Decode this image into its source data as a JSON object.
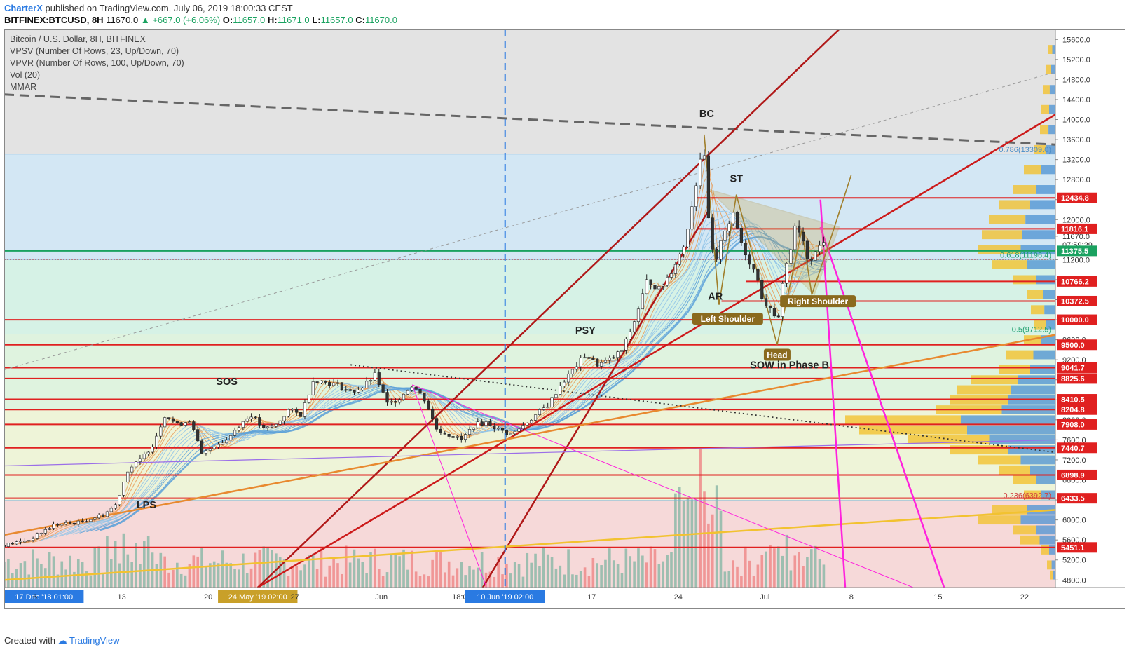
{
  "header": {
    "author": "CharterX",
    "published_text": "published on TradingView.com, July 06, 2019 18:00:33 CEST",
    "symbol": "BITFINEX:BTCUSD, 8H",
    "last": "11670.0",
    "change": "▲ +667.0 (+6.06%)",
    "o_label": "O:",
    "o_value": "11657.0",
    "h_label": "H:",
    "h_value": "11671.0",
    "l_label": "L:",
    "l_value": "11657.0",
    "c_label": "C:",
    "c_value": "11670.0"
  },
  "legend": [
    "Bitcoin / U.S. Dollar, 8H, BITFINEX",
    "VPSV (Number Of Rows, 23, Up/Down, 70)",
    "VPVR (Number Of Rows, 100, Up/Down, 70)",
    "Vol (20)",
    "MMAR"
  ],
  "footer": {
    "created_with": "Created with",
    "brand": "TradingView"
  },
  "colors": {
    "up": "#1aa260",
    "down": "#d63b3b",
    "accent": "#2a7ae2",
    "support_line": "#e02020",
    "trend_dark": "#b01818",
    "magenta": "#ff22dd",
    "orange": "#e8892f",
    "yellow": "#f2c230",
    "purple": "#9b6ee8"
  },
  "chart_data": {
    "type": "candlestick",
    "ylim": [
      4650,
      15800
    ],
    "y_ticks": [
      4800,
      5200,
      5600,
      6000,
      6400,
      6800,
      7200,
      7600,
      8000,
      8400,
      8800,
      9200,
      9600,
      10000,
      10400,
      10800,
      11200,
      11670,
      12000,
      12400,
      12800,
      13200,
      13600,
      14000,
      14400,
      14800,
      15200,
      15600
    ],
    "y_tick_labels": [
      "4800.0",
      "5200.0",
      "5600.0",
      "6000.0",
      "6400.0",
      "6800.0",
      "7200.0",
      "7600.0",
      "8000.0",
      "8400.0",
      "8800.0",
      "9200.0",
      "9600.0",
      "10000.0",
      "10400.0",
      "10800.0",
      "11200.0",
      "11670.0",
      "12000.0",
      "12400.0",
      "12800.0",
      "13200.0",
      "13600.0",
      "14000.0",
      "14400.0",
      "14800.0",
      "15200.0",
      "15600.0"
    ],
    "countdown": "07:59:29",
    "x_labels": [
      {
        "day": 0,
        "text": "17 Dec '18  01:00",
        "highlight": "blue"
      },
      {
        "day": 2.5,
        "text": "6"
      },
      {
        "day": 9.5,
        "text": "13"
      },
      {
        "day": 16.5,
        "text": "20"
      },
      {
        "day": 20.5,
        "text": "24 May '19  02:00",
        "highlight": "gold"
      },
      {
        "day": 23.5,
        "text": "27"
      },
      {
        "day": 30.5,
        "text": "Jun"
      },
      {
        "day": 37,
        "text": "18:00"
      },
      {
        "day": 40.5,
        "text": "10 Jun '19  02:00",
        "highlight": "blue"
      },
      {
        "day": 47.5,
        "text": "17"
      },
      {
        "day": 54.5,
        "text": "24"
      },
      {
        "day": 61.5,
        "text": "Jul"
      },
      {
        "day": 68.5,
        "text": "8"
      },
      {
        "day": 75.5,
        "text": "15"
      },
      {
        "day": 82.5,
        "text": "22"
      }
    ],
    "price_path": [
      [
        0,
        5500
      ],
      [
        2,
        5600
      ],
      [
        4,
        5900
      ],
      [
        6,
        5950
      ],
      [
        8,
        6100
      ],
      [
        9,
        6300
      ],
      [
        10,
        7000
      ],
      [
        11,
        7200
      ],
      [
        12,
        7500
      ],
      [
        13,
        8100
      ],
      [
        14,
        7900
      ],
      [
        15,
        8000
      ],
      [
        16,
        7300
      ],
      [
        17,
        7500
      ],
      [
        18,
        7600
      ],
      [
        19,
        7900
      ],
      [
        20,
        8100
      ],
      [
        21,
        7800
      ],
      [
        22,
        7900
      ],
      [
        23,
        8200
      ],
      [
        24,
        8100
      ],
      [
        25,
        8800
      ],
      [
        26,
        8750
      ],
      [
        27,
        8700
      ],
      [
        28,
        8550
      ],
      [
        29,
        8650
      ],
      [
        30,
        8900
      ],
      [
        31,
        8300
      ],
      [
        32,
        8450
      ],
      [
        33,
        8700
      ],
      [
        34,
        8400
      ],
      [
        35,
        7800
      ],
      [
        36,
        7700
      ],
      [
        37,
        7600
      ],
      [
        38,
        7900
      ],
      [
        39,
        7950
      ],
      [
        40,
        7800
      ],
      [
        41,
        7700
      ],
      [
        42,
        7900
      ],
      [
        43,
        8100
      ],
      [
        44,
        8300
      ],
      [
        45,
        8700
      ],
      [
        46,
        9000
      ],
      [
        47,
        9300
      ],
      [
        48,
        9100
      ],
      [
        49,
        9200
      ],
      [
        50,
        9400
      ],
      [
        51,
        10000
      ],
      [
        52,
        10800
      ],
      [
        53,
        10600
      ],
      [
        54,
        11000
      ],
      [
        55,
        11500
      ],
      [
        56,
        12800
      ],
      [
        56.5,
        13600
      ],
      [
        57,
        11800
      ],
      [
        57.5,
        11000
      ],
      [
        58,
        11700
      ],
      [
        59,
        12100
      ],
      [
        59.5,
        11600
      ],
      [
        60,
        11300
      ],
      [
        61,
        10800
      ],
      [
        61.5,
        10200
      ],
      [
        62,
        10300
      ],
      [
        62.5,
        9800
      ],
      [
        63,
        10900
      ],
      [
        63.5,
        11300
      ],
      [
        64,
        11900
      ],
      [
        64.5,
        11600
      ],
      [
        65,
        11200
      ],
      [
        65.5,
        11300
      ],
      [
        66,
        11500
      ],
      [
        66.5,
        11670
      ]
    ],
    "horizontal_levels": [
      {
        "price": 12434.8,
        "label": "12434.8",
        "from_day": 56
      },
      {
        "price": 11816.1,
        "label": "11816.1",
        "from_day": 56
      },
      {
        "price": 11375.5,
        "label": "11375.5",
        "from_day": 0,
        "color": "#1aa260"
      },
      {
        "price": 10766.2,
        "label": "10766.2",
        "from_day": 60
      },
      {
        "price": 10372.5,
        "label": "10372.5",
        "from_day": 58
      },
      {
        "price": 10000.0,
        "label": "10000.0",
        "from_day": 0
      },
      {
        "price": 9500.0,
        "label": "9500.0",
        "from_day": 0
      },
      {
        "price": 9041.7,
        "label": "9041.7",
        "from_day": 0
      },
      {
        "price": 8825.6,
        "label": "8825.6",
        "from_day": 0
      },
      {
        "price": 8410.5,
        "label": "8410.5",
        "from_day": 0
      },
      {
        "price": 8204.8,
        "label": "8204.8",
        "from_day": 0
      },
      {
        "price": 7908.0,
        "label": "7908.0",
        "from_day": 0
      },
      {
        "price": 7440.7,
        "label": "7440.7",
        "from_day": 0
      },
      {
        "price": 6898.9,
        "label": "6898.9",
        "from_day": 0
      },
      {
        "price": 6433.5,
        "label": "6433.5",
        "from_day": 0
      },
      {
        "price": 5451.1,
        "label": "5451.1",
        "from_day": 0
      }
    ],
    "fib_levels": [
      {
        "price": 13309.0,
        "label": "0.786(13309.0)"
      },
      {
        "price": 11196.4,
        "label": "0.618(11196.4)"
      },
      {
        "price": 9712.5,
        "label": "0.5(9712.5)"
      },
      {
        "price": 6392.7,
        "label": "0.236(6392.7)"
      }
    ],
    "zones": [
      {
        "from": 13309.0,
        "to": 15800,
        "color": "#e3e3e3"
      },
      {
        "from": 11196.4,
        "to": 13309.0,
        "color": "#d3e7f4"
      },
      {
        "from": 9712.5,
        "to": 11196.4,
        "color": "#d6f2e6"
      },
      {
        "from": 8200,
        "to": 9712.5,
        "color": "#dff3df"
      },
      {
        "from": 6392.7,
        "to": 8200,
        "color": "#eef4d8"
      },
      {
        "from": 4650,
        "to": 6392.7,
        "color": "#f6d9d9"
      }
    ],
    "trendlines": [
      {
        "name": "dashed-resistance",
        "from": [
          0,
          14500
        ],
        "to": [
          85,
          13500
        ],
        "color": "#666666",
        "style": "dashed",
        "width": 3
      },
      {
        "name": "thin-dashed-channel",
        "from": [
          0,
          9000
        ],
        "to": [
          85,
          14950
        ],
        "color": "#999999",
        "style": "dashed",
        "width": 1
      },
      {
        "name": "steep-red-trend-1",
        "from": [
          20.5,
          4650
        ],
        "to": [
          67.5,
          15800
        ],
        "color": "#b01818",
        "width": 2.5
      },
      {
        "name": "steep-red-trend-2",
        "from": [
          38.7,
          4650
        ],
        "to": [
          57,
          12200
        ],
        "color": "#b01818",
        "width": 2.5
      },
      {
        "name": "rising-red-trend",
        "from": [
          20.5,
          4650
        ],
        "to": [
          85,
          14100
        ],
        "color": "#cc1a1a",
        "width": 2.5
      },
      {
        "name": "orange-trend",
        "from": [
          0,
          5700
        ],
        "to": [
          85,
          9700
        ],
        "color": "#e8892f",
        "width": 2.5
      },
      {
        "name": "yellow-trend",
        "from": [
          0,
          4800
        ],
        "to": [
          85,
          6200
        ],
        "color": "#f2c230",
        "width": 2.5
      },
      {
        "name": "purple-trend",
        "from": [
          0,
          7080
        ],
        "to": [
          85,
          7600
        ],
        "color": "#9b6ee8",
        "width": 1.2
      },
      {
        "name": "dotted-downtrend",
        "from": [
          28,
          9100
        ],
        "to": [
          85,
          7350
        ],
        "color": "#333333",
        "style": "dotted",
        "width": 1.8
      },
      {
        "name": "magenta-fan-1",
        "from": [
          66,
          12400
        ],
        "to": [
          68,
          4650
        ],
        "color": "#ff22dd",
        "width": 2.5
      },
      {
        "name": "magenta-fan-2",
        "from": [
          66,
          11850
        ],
        "to": [
          76,
          4650
        ],
        "color": "#ff22dd",
        "width": 2.5
      },
      {
        "name": "magenta-thin-1",
        "from": [
          33,
          8700
        ],
        "to": [
          39,
          4650
        ],
        "color": "#ff22dd",
        "width": 1
      },
      {
        "name": "magenta-thin-2",
        "from": [
          33,
          8700
        ],
        "to": [
          73.5,
          4650
        ],
        "color": "#ff22dd",
        "width": 1
      }
    ],
    "triangle": {
      "points": [
        [
          57,
          12600
        ],
        [
          67.5,
          11850
        ],
        [
          65.5,
          10500
        ]
      ],
      "color": "#b08a2a"
    },
    "annotations": [
      {
        "text": "SOS",
        "day": 18,
        "price": 8700
      },
      {
        "text": "LPS",
        "day": 11.5,
        "price": 6230
      },
      {
        "text": "PSY",
        "day": 47,
        "price": 9720
      },
      {
        "text": "BC",
        "day": 56.8,
        "price": 14050
      },
      {
        "text": "ST",
        "day": 59.2,
        "price": 12750
      },
      {
        "text": "AR",
        "day": 57.5,
        "price": 10400
      },
      {
        "text": "SOW in Phase B",
        "day": 63.5,
        "price": 9030
      }
    ],
    "badges": [
      {
        "text": "Left Shoulder",
        "day": 58.5,
        "price": 10000
      },
      {
        "text": "Head",
        "day": 62.5,
        "price": 9280
      },
      {
        "text": "Right Shoulder",
        "day": 65.8,
        "price": 10350
      }
    ],
    "vertical_marker": {
      "day": 40.5,
      "color": "#2a7ae2"
    }
  }
}
